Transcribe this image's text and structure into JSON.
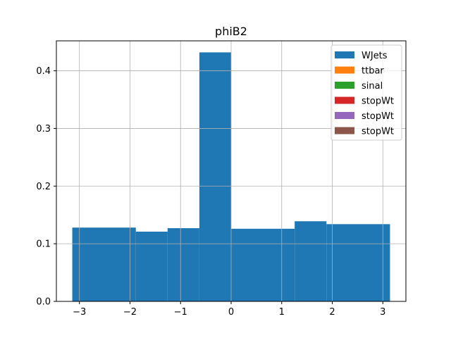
{
  "chart_data": {
    "type": "bar",
    "title": "phiB2",
    "xlabel": "",
    "ylabel": "",
    "xlim": [
      -3.456,
      3.456
    ],
    "ylim": [
      0,
      0.452
    ],
    "xticks": [
      -3,
      -2,
      -1,
      0,
      1,
      2,
      3
    ],
    "xtick_labels": [
      "−3",
      "−2",
      "−1",
      "0",
      "1",
      "2",
      "3"
    ],
    "yticks": [
      0.0,
      0.1,
      0.2,
      0.3,
      0.4
    ],
    "ytick_labels": [
      "0.0",
      "0.1",
      "0.2",
      "0.3",
      "0.4"
    ],
    "grid": true,
    "legend_position": "top-right",
    "bin_edges": [
      -3.1416,
      -1.885,
      -1.2566,
      -0.6283,
      0.0,
      1.2566,
      1.885,
      3.1416
    ],
    "series": [
      {
        "name": "WJets",
        "color": "#1f77b4",
        "values": [
          0.128,
          0.121,
          0.127,
          0.432,
          0.126,
          0.139,
          0.134
        ]
      },
      {
        "name": "ttbar",
        "color": "#ff7f0e",
        "values": []
      },
      {
        "name": "sinal",
        "color": "#2ca02c",
        "values": []
      },
      {
        "name": "stopWt",
        "color": "#d62728",
        "values": []
      },
      {
        "name": "stopWt",
        "color": "#9467bd",
        "values": []
      },
      {
        "name": "stopWt",
        "color": "#8c564b",
        "values": []
      }
    ]
  }
}
